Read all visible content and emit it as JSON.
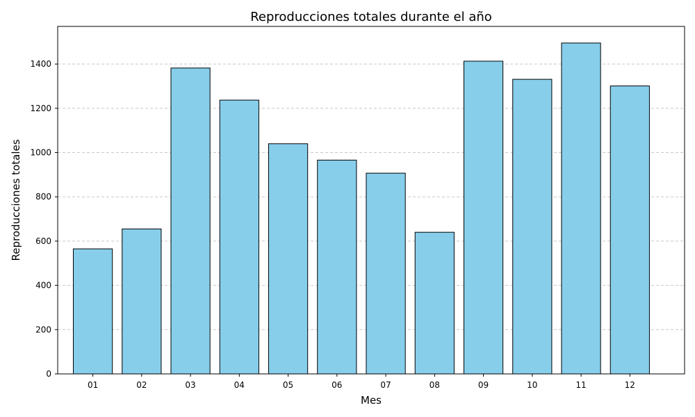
{
  "chart_data": {
    "type": "bar",
    "title": "Reproducciones totales durante el año",
    "xlabel": "Mes",
    "ylabel": "Reproducciones totales",
    "categories": [
      "01",
      "02",
      "03",
      "04",
      "05",
      "06",
      "07",
      "08",
      "09",
      "10",
      "11",
      "12"
    ],
    "values": [
      565,
      655,
      1382,
      1237,
      1040,
      966,
      907,
      640,
      1413,
      1331,
      1495,
      1301
    ],
    "ylim": [
      0,
      1570
    ],
    "yticks": [
      0,
      200,
      400,
      600,
      800,
      1000,
      1200,
      1400
    ],
    "grid": "y-dashed",
    "colors": {
      "bar_fill": "#87ceeb",
      "bar_edge": "#000000",
      "grid": "#c7c7c7"
    }
  }
}
